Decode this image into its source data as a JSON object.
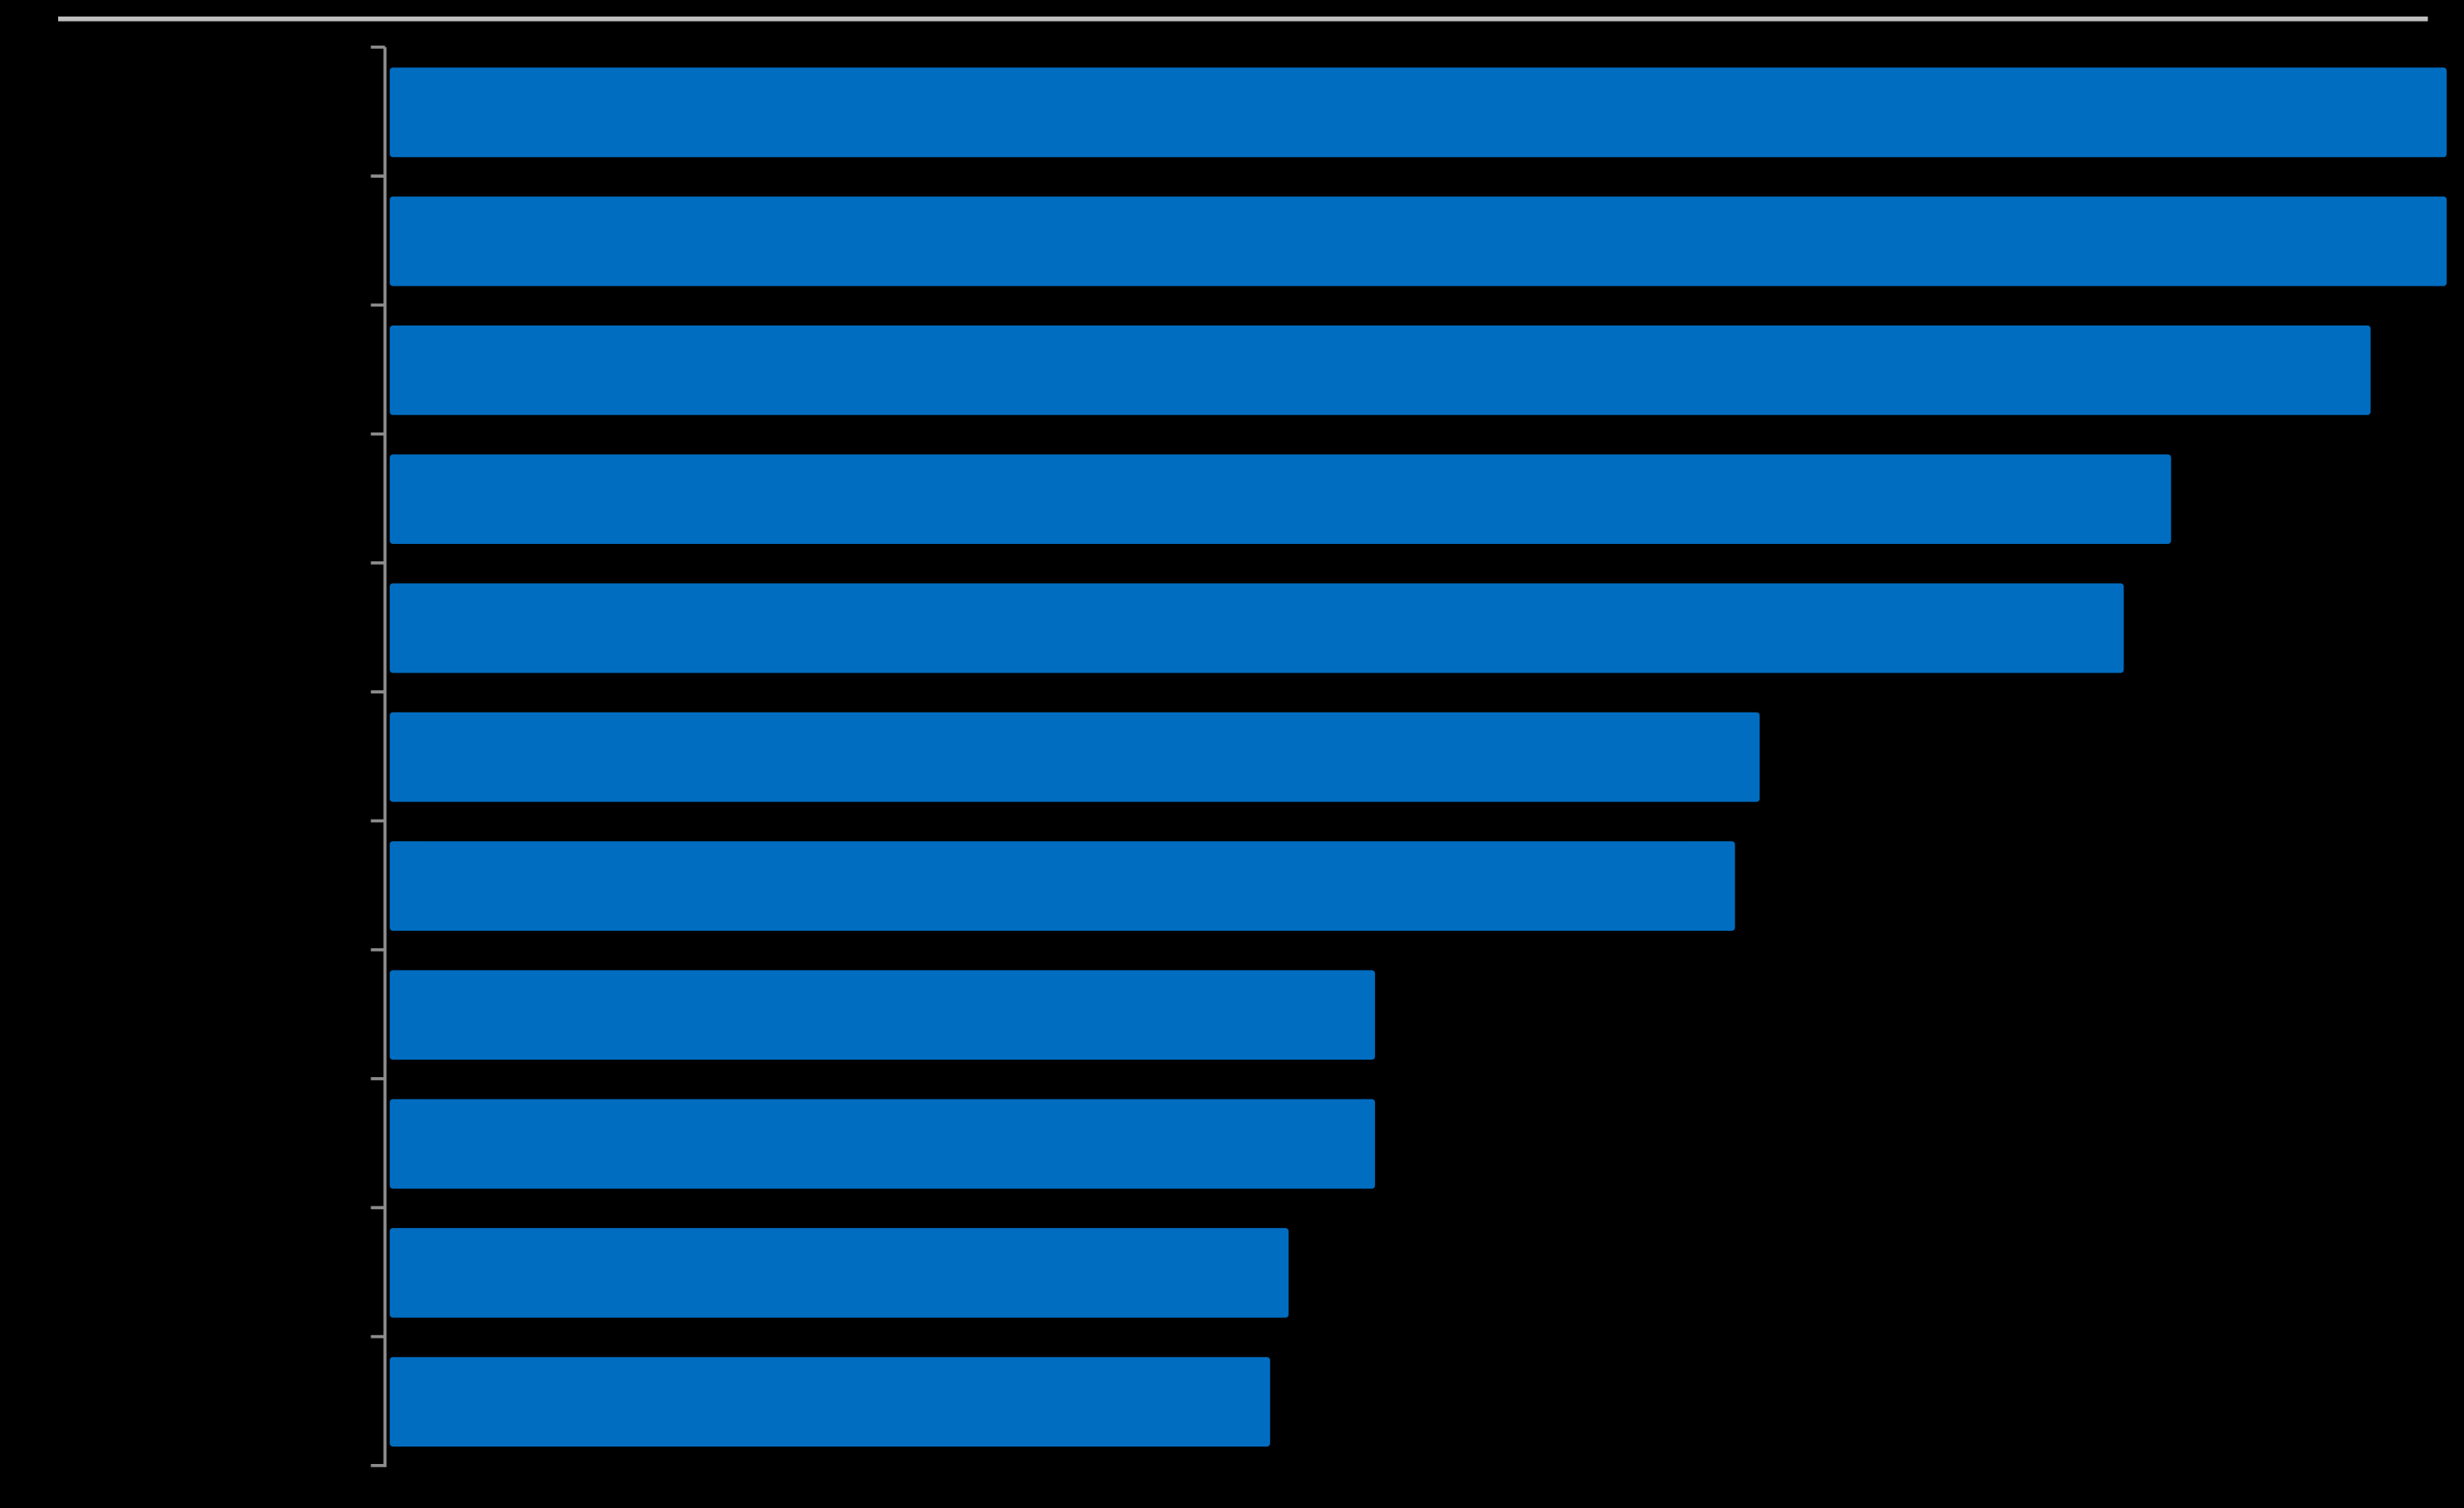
{
  "chart_data": {
    "type": "bar",
    "orientation": "horizontal",
    "color": "#006dc1",
    "categories": [
      null,
      null,
      null,
      null,
      null,
      null,
      null,
      null,
      null,
      null,
      null
    ],
    "values": [
      100,
      100,
      96.3,
      86.6,
      84.3,
      66.6,
      65.4,
      47.9,
      47.9,
      43.7,
      42.8
    ],
    "xlim": [
      0,
      100
    ]
  }
}
